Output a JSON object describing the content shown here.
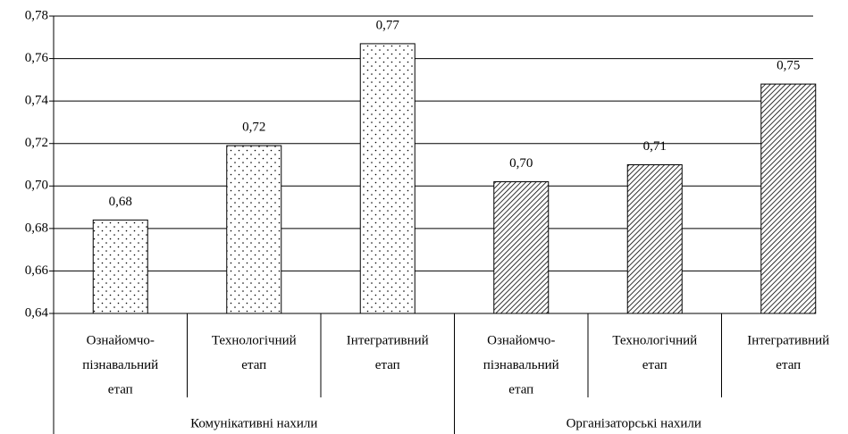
{
  "chart_data": {
    "type": "bar",
    "ylim": [
      0.64,
      0.78
    ],
    "yticks": [
      {
        "value": 0.64,
        "label": "0,64"
      },
      {
        "value": 0.66,
        "label": "0,66"
      },
      {
        "value": 0.68,
        "label": "0,68"
      },
      {
        "value": 0.7,
        "label": "0,70"
      },
      {
        "value": 0.72,
        "label": "0,72"
      },
      {
        "value": 0.74,
        "label": "0,74"
      },
      {
        "value": 0.76,
        "label": "0,76"
      },
      {
        "value": 0.78,
        "label": "0,78"
      }
    ],
    "grid": true,
    "series": [
      {
        "name": "Комунікативні нахили",
        "pattern": "dots",
        "categories": [
          [
            "Ознайомчо-",
            "пізнавальний",
            "етап"
          ],
          [
            "Технологічний",
            "етап"
          ],
          [
            "Інтегративний",
            "етап"
          ]
        ],
        "values": [
          0.684,
          0.719,
          0.767
        ],
        "value_labels": [
          "0,68",
          "0,72",
          "0,77"
        ]
      },
      {
        "name": "Організаторські нахили",
        "pattern": "hatch",
        "categories": [
          [
            "Ознайомчо-",
            "пізнавальний",
            "етап"
          ],
          [
            "Технологічний",
            "етап"
          ],
          [
            "Інтегративний",
            "етап"
          ]
        ],
        "values": [
          0.702,
          0.71,
          0.748
        ],
        "value_labels": [
          "0,70",
          "0,71",
          "0,75"
        ]
      }
    ]
  }
}
